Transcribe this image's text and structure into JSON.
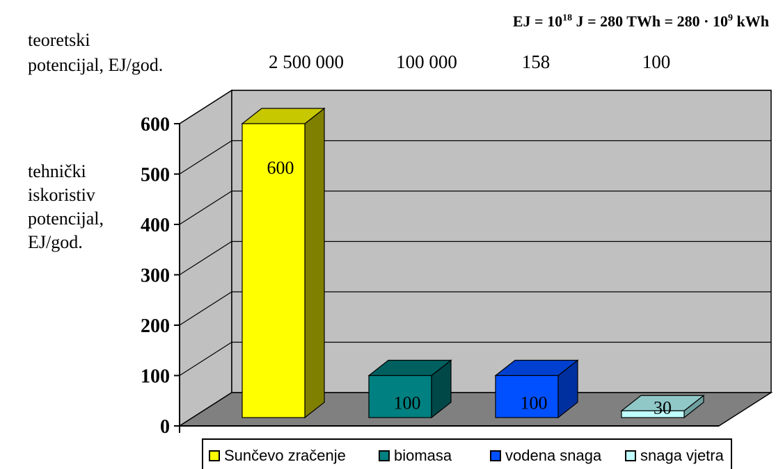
{
  "formula": {
    "a": "EJ = 10",
    "sup1": "18",
    "b": " J = 280 TWh = 280 · 10",
    "sup2": "9",
    "c": " kWh"
  },
  "theoretical_label": [
    "teoretski",
    "potencijal, EJ/god."
  ],
  "technical_label": [
    "tehnički",
    "iskoristiv",
    "potencijal,",
    "EJ/god."
  ],
  "theoretical_values": [
    "2 500 000",
    "100 000",
    "158",
    "100"
  ],
  "colors": {
    "bar_front": [
      "#ffff00",
      "#008080",
      "#0050ff",
      "#c0ffff"
    ],
    "bar_side": [
      "#808000",
      "#004848",
      "#0030a0",
      "#70a0a0"
    ],
    "bar_top": [
      "#c8c800",
      "#006060",
      "#0040d0",
      "#90c8c8"
    ],
    "wall": "#c0c0c0",
    "floor": "#808080"
  },
  "chart_data": {
    "type": "bar",
    "categories": [
      "Sunčevo zračenje",
      "biomasa",
      "vodena snaga",
      "snaga vjetra"
    ],
    "values": [
      600,
      100,
      100,
      30
    ],
    "data_labels": [
      "600",
      "100",
      "100",
      "30"
    ],
    "ylim": [
      0,
      600
    ],
    "yticks": [
      0,
      100,
      200,
      300,
      400,
      500,
      600
    ],
    "grid": true,
    "legend": "bottom",
    "xlabel": "",
    "ylabel": "tehnički iskoristiv potencijal, EJ/god."
  }
}
